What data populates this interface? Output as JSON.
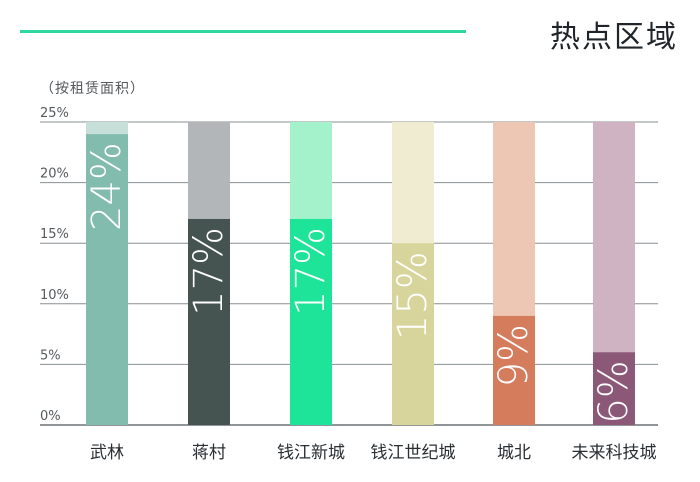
{
  "title": "热点区域",
  "unit_note": "（按租赁面积）",
  "chart_data": {
    "type": "bar",
    "title": "热点区域",
    "ylabel": "（按租赁面积）",
    "ylim": [
      0,
      25
    ],
    "y_ticks": [
      "0%",
      "5%",
      "10%",
      "15%",
      "20%",
      "25%"
    ],
    "y_tick_values": [
      0,
      5,
      10,
      15,
      20,
      25
    ],
    "grid": true,
    "categories": [
      "武林",
      "蒋村",
      "钱江新城",
      "钱江世纪城",
      "城北",
      "未来科技城"
    ],
    "values": [
      24,
      17,
      17,
      15,
      9,
      6
    ],
    "data_labels": [
      "24%",
      "17%",
      "17%",
      "15%",
      "9%",
      "6%"
    ],
    "bar_colors": [
      "#82bcaf",
      "#465451",
      "#1de498",
      "#d8d59c",
      "#d57c5c",
      "#8c5878"
    ],
    "track_colors": [
      "#c6dfd9",
      "#b3b6b9",
      "#a3f2cc",
      "#efecd2",
      "#eec6b4",
      "#cfb3c3"
    ],
    "label_colors": [
      "#ffffff",
      "#ffffff",
      "#ffffff",
      "#ffffff",
      "#ffffff",
      "#ffffff"
    ]
  }
}
